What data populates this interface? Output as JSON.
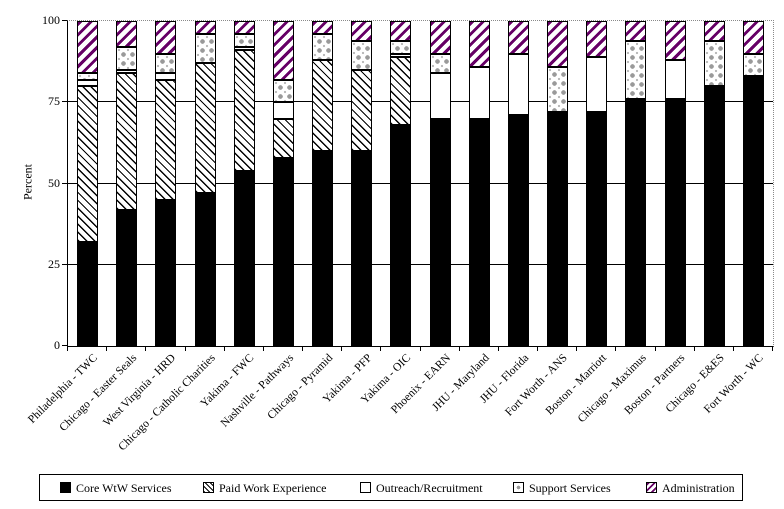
{
  "y_axis": {
    "title": "Percent"
  },
  "colors": {
    "bar_black": "#000000",
    "admin_purple": "#660066",
    "dots_gray": "#9a9a9a",
    "axis": "#000000",
    "dotted_border_gray": "#8a8a8a",
    "background": "#ffffff"
  },
  "chart_data": {
    "type": "bar",
    "stacked": true,
    "title": "",
    "xlabel": "",
    "ylabel": "Percent",
    "ylim": [
      0,
      100
    ],
    "yticks": [
      0,
      25,
      50,
      75,
      100
    ],
    "grid": "horizontal solid lines at 25, 50, 75; dotted gray line at 100 and right plot border",
    "legend_position": "bottom",
    "categories": [
      "Philadelphia - TWC",
      "Chicago - Easter Seals",
      "West Virginia - HRD",
      "Chicago - Catholic Charities",
      "Yakima - FWC",
      "Nashville - Pathways",
      "Chicago - Pyramid",
      "Yakima - PFP",
      "Yakima - OIC",
      "Phoenix - EARN",
      "JHU - Maryland",
      "JHU - Florida",
      "Fort Worth - ANS",
      "Boston - Marriott",
      "Chicago - Maximus",
      "Boston - Partners",
      "Chicago - E&ES",
      "Fort Worth - WC"
    ],
    "series": [
      {
        "name": "Core WtW Services",
        "style": "solid-black",
        "values": [
          32,
          42,
          45,
          47,
          54,
          58,
          60,
          60,
          68,
          70,
          70,
          71,
          72,
          72,
          76,
          76,
          80,
          83
        ]
      },
      {
        "name": "Paid Work Experience",
        "style": "black-hatch",
        "values": [
          48,
          42,
          37,
          40,
          37,
          12,
          28,
          25,
          21,
          0,
          0,
          0,
          0,
          0,
          0,
          0,
          0,
          0
        ]
      },
      {
        "name": "Outreach/Recruitment",
        "style": "white",
        "values": [
          2,
          1,
          2,
          0,
          1,
          5,
          0,
          0,
          1,
          14,
          16,
          19,
          0,
          17,
          0,
          12,
          0,
          0
        ]
      },
      {
        "name": "Support Services",
        "style": "gray-dots",
        "values": [
          2,
          7,
          6,
          9,
          4,
          7,
          8,
          9,
          4,
          6,
          0,
          0,
          14,
          0,
          18,
          0,
          14,
          7
        ]
      },
      {
        "name": "Administration",
        "style": "purple-hatch",
        "values": [
          16,
          8,
          10,
          4,
          4,
          18,
          4,
          6,
          6,
          10,
          14,
          10,
          14,
          11,
          6,
          12,
          6,
          10
        ]
      }
    ]
  }
}
